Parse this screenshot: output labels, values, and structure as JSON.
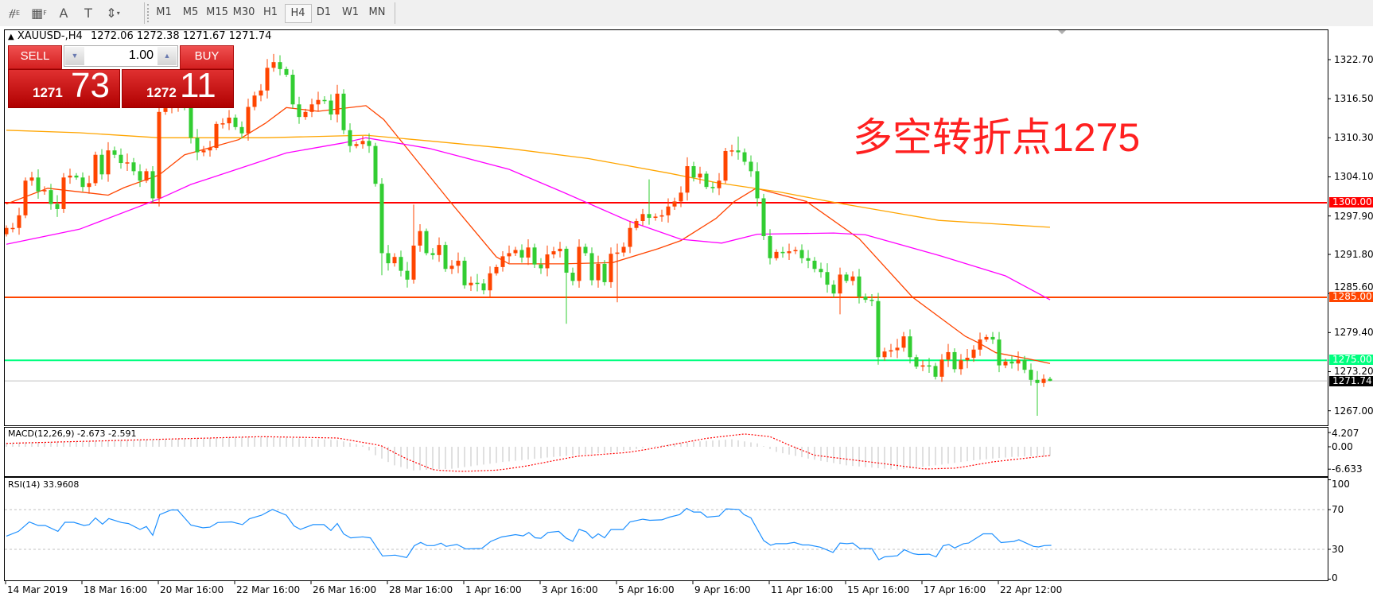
{
  "toolbar": {
    "tools": [
      {
        "icon": "line-studies-icon",
        "glyph": "⧣",
        "sub": "E"
      },
      {
        "icon": "grid-icon",
        "glyph": "▦",
        "sub": "F"
      },
      {
        "icon": "text-icon",
        "glyph": "A",
        "sub": ""
      },
      {
        "icon": "text-label-icon",
        "glyph": "T",
        "sub": ""
      },
      {
        "icon": "arrows-icon",
        "glyph": "⇕",
        "sub": "▾"
      }
    ],
    "timeframes": [
      "M1",
      "M5",
      "M15",
      "M30",
      "H1",
      "H4",
      "D1",
      "W1",
      "MN"
    ],
    "active_timeframe": "H4"
  },
  "chart": {
    "symbol": "XAUUSD-,H4",
    "ohlc": "1272.06 1272.38 1271.67 1271.74",
    "trade_panel": {
      "sell_label": "SELL",
      "buy_label": "BUY",
      "lot": "1.00",
      "sell_big_figure": "1271",
      "sell_pips": "73",
      "buy_big_figure": "1272",
      "buy_pips": "11"
    },
    "annotation": "多空转折点1275",
    "price_axis": [
      "1322.70",
      "1316.50",
      "1310.30",
      "1304.10",
      "1297.90",
      "1291.80",
      "1285.60",
      "1279.40",
      "1273.20",
      "1267.00"
    ],
    "levels": [
      {
        "price": 1300.0,
        "label": "1300.00",
        "color": "#ff0000"
      },
      {
        "price": 1285.0,
        "label": "1285.00",
        "color": "#ff4500"
      },
      {
        "price": 1275.0,
        "label": "1275.00",
        "color": "#00ff7f"
      }
    ],
    "current_price": {
      "price": 1271.74,
      "label": "1271.74",
      "line_color": "#c0c0c0",
      "box_color": "#000000"
    },
    "dates": [
      "14 Mar 2019",
      "18 Mar 16:00",
      "20 Mar 16:00",
      "22 Mar 16:00",
      "26 Mar 16:00",
      "28 Mar 16:00",
      "1 Apr 16:00",
      "3 Apr 16:00",
      "5 Apr 16:00",
      "9 Apr 16:00",
      "11 Apr 16:00",
      "15 Apr 16:00",
      "17 Apr 16:00",
      "22 Apr 12:00"
    ],
    "colors": {
      "bull": "#ff4500",
      "bear": "#32cd32"
    },
    "candles": {
      "first_open": 1295.0,
      "closes": [
        1296,
        1296,
        1298,
        1303.5,
        1304,
        1301.8,
        1302,
        1299.8,
        1299,
        1304,
        1304.3,
        1304,
        1302.5,
        1303.1,
        1307.6,
        1304.5,
        1308.3,
        1307.6,
        1306.3,
        1306.4,
        1305,
        1303.5,
        1305,
        1300.7,
        1314.4,
        1315,
        1315.6,
        1316.2,
        1315.2,
        1310.3,
        1308,
        1308.3,
        1308.7,
        1312.5,
        1312.6,
        1313.5,
        1312,
        1311,
        1315.2,
        1317,
        1317.8,
        1321.4,
        1322.3,
        1321.2,
        1320.3,
        1315.6,
        1313.6,
        1314.4,
        1315.6,
        1316.3,
        1316.2,
        1314,
        1317.3,
        1311.5,
        1309,
        1309.3,
        1309.8,
        1309,
        1303,
        1292,
        1290.4,
        1291.4,
        1289.2,
        1287.8,
        1293.2,
        1295.5,
        1292,
        1291.7,
        1293.3,
        1289.5,
        1290,
        1290.8,
        1286.9,
        1287.3,
        1287.2,
        1286.1,
        1288.8,
        1289.8,
        1291.5,
        1292,
        1292.5,
        1291.3,
        1292.9,
        1290.2,
        1289.6,
        1291.8,
        1292.3,
        1292.7,
        1288.9,
        1287.6,
        1293,
        1292,
        1287.7,
        1290.3,
        1287.4,
        1291.9,
        1292.1,
        1293,
        1296,
        1297.1,
        1298.2,
        1297.6,
        1297.8,
        1298,
        1299.4,
        1300.2,
        1301.6,
        1305.8,
        1304,
        1304.6,
        1302.5,
        1302.3,
        1303.5,
        1308.2,
        1308.3,
        1308,
        1306.5,
        1305,
        1300.7,
        1294.7,
        1291.2,
        1292.2,
        1292,
        1292.3,
        1292.5,
        1291.2,
        1290.8,
        1289.5,
        1289,
        1287,
        1285.6,
        1288.6,
        1287.6,
        1288.3,
        1285.1,
        1284.6,
        1284.4,
        1275.5,
        1276.4,
        1276.6,
        1277,
        1278.8,
        1275.5,
        1274,
        1274.2,
        1274.1,
        1272.4,
        1275.1,
        1276.3,
        1273.6,
        1275,
        1275.4,
        1276.7,
        1278.3,
        1278.7,
        1278.3,
        1274.2,
        1274.8,
        1274.5,
        1275.1,
        1273.5,
        1271.9,
        1271.4,
        1272.06,
        1271.74
      ],
      "wick_overrides": [
        {
          "bar": 24,
          "low": 1299.4
        },
        {
          "bar": 42,
          "high": 1323.6
        },
        {
          "bar": 59,
          "low": 1288.5
        },
        {
          "bar": 64,
          "high": 1299.7
        },
        {
          "bar": 88,
          "low": 1280.8
        },
        {
          "bar": 96,
          "low": 1284.2
        },
        {
          "bar": 101,
          "high": 1303.7
        },
        {
          "bar": 115,
          "high": 1310.5
        },
        {
          "bar": 131,
          "low": 1282.3
        },
        {
          "bar": 137,
          "low": 1274.3
        },
        {
          "bar": 162,
          "low": 1266.2
        },
        {
          "bar": 164,
          "high": 1272.38,
          "low": 1271.67
        }
      ]
    },
    "moving_averages": [
      {
        "color": "#ff4500",
        "points": [
          [
            0,
            1299.8
          ],
          [
            6.5,
            1302.3
          ],
          [
            16,
            1301.2
          ],
          [
            18.5,
            1302.4
          ],
          [
            24,
            1304.4
          ],
          [
            28,
            1307.6
          ],
          [
            36.5,
            1310
          ],
          [
            40.7,
            1312.6
          ],
          [
            44,
            1315.1
          ],
          [
            49,
            1314.5
          ],
          [
            56.5,
            1315.4
          ],
          [
            59.3,
            1313.2
          ],
          [
            69.7,
            1300.2
          ],
          [
            77,
            1291.4
          ],
          [
            79,
            1290.3
          ],
          [
            87.4,
            1290.3
          ],
          [
            95.3,
            1290.5
          ],
          [
            102.4,
            1292.7
          ],
          [
            106,
            1294
          ],
          [
            111.5,
            1297.5
          ],
          [
            114.4,
            1300.2
          ],
          [
            117.8,
            1302.3
          ],
          [
            125.7,
            1300.2
          ],
          [
            134,
            1294.3
          ],
          [
            142.4,
            1285
          ],
          [
            150.7,
            1278.8
          ],
          [
            152.9,
            1277.7
          ],
          [
            155.5,
            1276.2
          ],
          [
            160.8,
            1275.2
          ],
          [
            164,
            1274.5
          ]
        ]
      },
      {
        "color": "#ff00ff",
        "points": [
          [
            0,
            1293.4
          ],
          [
            11.5,
            1295.8
          ],
          [
            24,
            1300.6
          ],
          [
            29,
            1302.9
          ],
          [
            44,
            1307.9
          ],
          [
            53,
            1309.5
          ],
          [
            56.5,
            1310.3
          ],
          [
            66.5,
            1308.6
          ],
          [
            79,
            1305.3
          ],
          [
            87.4,
            1301.7
          ],
          [
            97.8,
            1297.1
          ],
          [
            106,
            1294.2
          ],
          [
            112.4,
            1293.6
          ],
          [
            118,
            1295
          ],
          [
            130,
            1295.2
          ],
          [
            135,
            1294.9
          ],
          [
            146.7,
            1291.6
          ],
          [
            157,
            1288.4
          ],
          [
            164,
            1284.6
          ]
        ]
      },
      {
        "color": "#ffa500",
        "points": [
          [
            0,
            1311.5
          ],
          [
            11.5,
            1311.1
          ],
          [
            24,
            1310.3
          ],
          [
            40.7,
            1310.3
          ],
          [
            56.5,
            1310.7
          ],
          [
            66.5,
            1309.8
          ],
          [
            79,
            1308.6
          ],
          [
            91.5,
            1307
          ],
          [
            104,
            1304.7
          ],
          [
            111.5,
            1303.2
          ],
          [
            121.5,
            1301.7
          ],
          [
            129.8,
            1300.1
          ],
          [
            146.5,
            1297.2
          ],
          [
            164,
            1296.1
          ]
        ]
      }
    ]
  },
  "macd": {
    "label": "MACD(12,26,9) -2.673 -2.591",
    "axis": [
      {
        "value": 4.207,
        "label": "4.207"
      },
      {
        "value": 0,
        "label": "0.00"
      },
      {
        "value": -6.633,
        "label": "-6.633"
      }
    ],
    "hist_color": "#c0c0c0",
    "signal_color": "#ff0000",
    "histogram": [
      [
        0,
        1.2
      ],
      [
        10,
        1.6
      ],
      [
        24,
        2.2
      ],
      [
        40,
        3.0
      ],
      [
        52,
        2.0
      ],
      [
        56,
        0.4
      ],
      [
        58,
        -2.5
      ],
      [
        61,
        -5.5
      ],
      [
        64,
        -7.0
      ],
      [
        70,
        -6.5
      ],
      [
        78,
        -4.5
      ],
      [
        86,
        -3.0
      ],
      [
        96,
        -1.5
      ],
      [
        102,
        0.2
      ],
      [
        108,
        1.5
      ],
      [
        114,
        2.2
      ],
      [
        118,
        1.0
      ],
      [
        121,
        -1.5
      ],
      [
        126,
        -3.5
      ],
      [
        132,
        -5.5
      ],
      [
        140,
        -6.8
      ],
      [
        146,
        -5.5
      ],
      [
        152,
        -4.0
      ],
      [
        158,
        -3.0
      ],
      [
        164,
        -2.67
      ]
    ],
    "signal": [
      [
        0,
        1.0
      ],
      [
        20,
        2.0
      ],
      [
        40,
        3.0
      ],
      [
        52,
        2.6
      ],
      [
        58.8,
        0.4
      ],
      [
        62.8,
        -3.5
      ],
      [
        67.2,
        -6.9
      ],
      [
        71.7,
        -7.3
      ],
      [
        77.3,
        -6.9
      ],
      [
        81.7,
        -5.7
      ],
      [
        86.6,
        -3.9
      ],
      [
        89.7,
        -2.8
      ],
      [
        97.5,
        -1.7
      ],
      [
        100.9,
        -0.7
      ],
      [
        104.3,
        0.5
      ],
      [
        110,
        2.5
      ],
      [
        116,
        3.8
      ],
      [
        120,
        3.0
      ],
      [
        123,
        0.5
      ],
      [
        127,
        -2.5
      ],
      [
        137,
        -4.8
      ],
      [
        144.3,
        -6.6
      ],
      [
        149.3,
        -6.3
      ],
      [
        154.9,
        -4.5
      ],
      [
        161,
        -3.2
      ],
      [
        164,
        -2.59
      ]
    ]
  },
  "rsi": {
    "label": "RSI(14) 33.9608",
    "axis": [
      {
        "value": 100,
        "label": "100"
      },
      {
        "value": 70,
        "label": "70"
      },
      {
        "value": 30,
        "label": "30"
      },
      {
        "value": 0,
        "label": "0"
      }
    ],
    "levels": [
      70,
      30
    ],
    "color": "#1e90ff",
    "values": [
      [
        0,
        43.3
      ],
      [
        1.9,
        48.1
      ],
      [
        3.6,
        57.5
      ],
      [
        5,
        54
      ],
      [
        6.1,
        54
      ],
      [
        8.1,
        48.1
      ],
      [
        9.2,
        57.2
      ],
      [
        10.6,
        57.2
      ],
      [
        12.2,
        54
      ],
      [
        13,
        54.8
      ],
      [
        14,
        61.5
      ],
      [
        15.1,
        55.4
      ],
      [
        16.1,
        61
      ],
      [
        18.1,
        57
      ],
      [
        19.2,
        55.9
      ],
      [
        21,
        50
      ],
      [
        22,
        53
      ],
      [
        23,
        44.2
      ],
      [
        24.1,
        65
      ],
      [
        25.9,
        69.6
      ],
      [
        26.9,
        69.6
      ],
      [
        29,
        54.4
      ],
      [
        30.9,
        51.7
      ],
      [
        32,
        52.3
      ],
      [
        33.2,
        57
      ],
      [
        35.4,
        57.6
      ],
      [
        37.1,
        54.9
      ],
      [
        38.2,
        60.8
      ],
      [
        40.1,
        64.3
      ],
      [
        41.8,
        70.2
      ],
      [
        44,
        64.3
      ],
      [
        45.2,
        53.6
      ],
      [
        46.2,
        50.1
      ],
      [
        48.2,
        54.9
      ],
      [
        49.9,
        54.9
      ],
      [
        51,
        49
      ],
      [
        52,
        56
      ],
      [
        53,
        45.5
      ],
      [
        54.1,
        41.5
      ],
      [
        56,
        42.6
      ],
      [
        57.2,
        41.5
      ],
      [
        59.1,
        23.4
      ],
      [
        61.1,
        24.2
      ],
      [
        62.9,
        21.8
      ],
      [
        64.1,
        33.6
      ],
      [
        65.1,
        37
      ],
      [
        66.1,
        33.8
      ],
      [
        67.2,
        33.8
      ],
      [
        68.3,
        36.2
      ],
      [
        69.1,
        33
      ],
      [
        70.8,
        34.9
      ],
      [
        72.2,
        30.4
      ],
      [
        74.7,
        30.9
      ],
      [
        76.1,
        37.9
      ],
      [
        77.8,
        42.4
      ],
      [
        80,
        44.8
      ],
      [
        81.2,
        43.5
      ],
      [
        82.1,
        47
      ],
      [
        83.1,
        41.6
      ],
      [
        84,
        41.1
      ],
      [
        85.1,
        47
      ],
      [
        86.8,
        48.1
      ],
      [
        88,
        41.1
      ],
      [
        89,
        38.1
      ],
      [
        90,
        50.1
      ],
      [
        91.1,
        47.7
      ],
      [
        92.1,
        41.1
      ],
      [
        93,
        45.6
      ],
      [
        94,
        41.6
      ],
      [
        95,
        49.9
      ],
      [
        96.9,
        49.9
      ],
      [
        98,
        57.6
      ],
      [
        100,
        60.3
      ],
      [
        101.1,
        59.2
      ],
      [
        103,
        59.7
      ],
      [
        104.2,
        62.4
      ],
      [
        105.8,
        65
      ],
      [
        106.9,
        71.2
      ],
      [
        108,
        67.5
      ],
      [
        109.1,
        67.5
      ],
      [
        110.1,
        62.4
      ],
      [
        112,
        63.5
      ],
      [
        113.1,
        70.7
      ],
      [
        115.1,
        70.2
      ],
      [
        115.9,
        65
      ],
      [
        117,
        61.6
      ],
      [
        119,
        38.9
      ],
      [
        120.1,
        34.1
      ],
      [
        120.9,
        35.7
      ],
      [
        122.6,
        35.7
      ],
      [
        123.8,
        37
      ],
      [
        125.1,
        34.4
      ],
      [
        126.1,
        34.4
      ],
      [
        127.9,
        32.2
      ],
      [
        129.9,
        26.9
      ],
      [
        131,
        36.3
      ],
      [
        132.1,
        35.7
      ],
      [
        133,
        36.3
      ],
      [
        134.1,
        30.9
      ],
      [
        136,
        30.7
      ],
      [
        137.1,
        19.5
      ],
      [
        138,
        22.4
      ],
      [
        140,
        23.5
      ],
      [
        141.1,
        29.6
      ],
      [
        142.5,
        25.6
      ],
      [
        143.3,
        24.8
      ],
      [
        145,
        25.1
      ],
      [
        146.1,
        22.4
      ],
      [
        147.2,
        33.6
      ],
      [
        148.1,
        34.9
      ],
      [
        149,
        31.4
      ],
      [
        150.4,
        35.7
      ],
      [
        151.2,
        36.3
      ],
      [
        153.5,
        45.6
      ],
      [
        154.9,
        45.6
      ],
      [
        156.3,
        36.8
      ],
      [
        158.3,
        37.9
      ],
      [
        159.1,
        39.7
      ],
      [
        161.4,
        33
      ],
      [
        162.2,
        32.4
      ],
      [
        163.1,
        33.8
      ],
      [
        164.2,
        33.96
      ]
    ]
  }
}
